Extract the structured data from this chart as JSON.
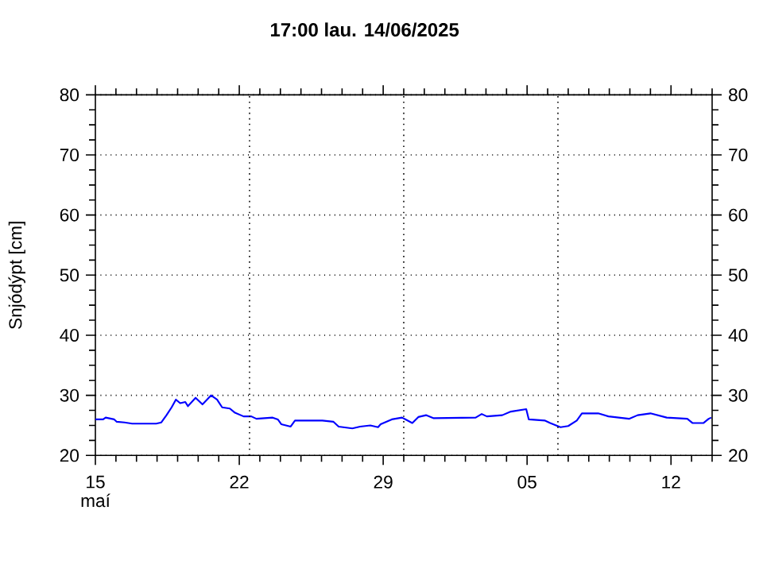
{
  "chart_data": {
    "type": "line",
    "title": "17:00   lau.  14/06/2025",
    "ylabel": "Snjódýpt [cm]",
    "annotations": [
      "maí"
    ],
    "xlim": [
      "2025-05-15T00:00",
      "2025-06-14T00:00"
    ],
    "xticks": [
      {
        "value": "2025-05-15",
        "label": "15"
      },
      {
        "value": "2025-05-16",
        "label": null
      },
      {
        "value": "2025-05-17",
        "label": null
      },
      {
        "value": "2025-05-18",
        "label": null
      },
      {
        "value": "2025-05-19",
        "label": null
      },
      {
        "value": "2025-05-20",
        "label": null
      },
      {
        "value": "2025-05-21",
        "label": null
      },
      {
        "value": "2025-05-22",
        "label": "22"
      },
      {
        "value": "2025-05-23",
        "label": null
      },
      {
        "value": "2025-05-24",
        "label": null
      },
      {
        "value": "2025-05-25",
        "label": null
      },
      {
        "value": "2025-05-26",
        "label": null
      },
      {
        "value": "2025-05-27",
        "label": null
      },
      {
        "value": "2025-05-28",
        "label": null
      },
      {
        "value": "2025-05-29",
        "label": "29"
      },
      {
        "value": "2025-05-30",
        "label": null
      },
      {
        "value": "2025-05-31",
        "label": null
      },
      {
        "value": "2025-06-01",
        "label": null
      },
      {
        "value": "2025-06-02",
        "label": null
      },
      {
        "value": "2025-06-03",
        "label": null
      },
      {
        "value": "2025-06-04",
        "label": null
      },
      {
        "value": "2025-06-05",
        "label": "05"
      },
      {
        "value": "2025-06-06",
        "label": null
      },
      {
        "value": "2025-06-07",
        "label": null
      },
      {
        "value": "2025-06-08",
        "label": null
      },
      {
        "value": "2025-06-09",
        "label": null
      },
      {
        "value": "2025-06-10",
        "label": null
      },
      {
        "value": "2025-06-11",
        "label": null
      },
      {
        "value": "2025-06-12",
        "label": "12"
      },
      {
        "value": "2025-06-13",
        "label": null
      },
      {
        "value": "2025-06-14",
        "label": null
      }
    ],
    "ylim": [
      20,
      80
    ],
    "yticks": [
      20,
      30,
      40,
      50,
      60,
      70,
      80
    ],
    "y2lim": [
      20,
      80
    ],
    "y2ticks": [
      20,
      30,
      40,
      50,
      60,
      70,
      80
    ],
    "grid": "y",
    "ref_lines": [
      {
        "axis": "x",
        "value": "2025-05-22T12:00",
        "color": "#000000",
        "line_style": "dotted"
      },
      {
        "axis": "x",
        "value": "2025-05-30T00:00",
        "color": "#000000",
        "line_style": "dotted"
      },
      {
        "axis": "x",
        "value": "2025-06-06T12:00",
        "color": "#000000",
        "line_style": "dotted"
      }
    ],
    "series": [
      {
        "color": "#0000ff",
        "x": [
          "2025-05-15T00:00",
          "2025-05-15T09:00",
          "2025-05-15T12:00",
          "2025-05-15T22:00",
          "2025-05-16T01:00",
          "2025-05-16T10:00",
          "2025-05-16T19:00",
          "2025-05-17T23:00",
          "2025-05-18T05:00",
          "2025-05-18T11:00",
          "2025-05-18T17:00",
          "2025-05-18T22:00",
          "2025-05-19T03:00",
          "2025-05-19T09:00",
          "2025-05-19T12:00",
          "2025-05-19T21:00",
          "2025-05-20T05:00",
          "2025-05-20T15:00",
          "2025-05-20T22:00",
          "2025-05-21T04:00",
          "2025-05-21T13:00",
          "2025-05-21T19:00",
          "2025-05-22T05:00",
          "2025-05-22T14:00",
          "2025-05-22T20:00",
          "2025-05-23T15:00",
          "2025-05-23T21:00",
          "2025-05-24T01:00",
          "2025-05-24T12:00",
          "2025-05-24T17:00",
          "2025-05-26T01:00",
          "2025-05-26T14:00",
          "2025-05-26T20:00",
          "2025-05-27T12:00",
          "2025-05-27T21:00",
          "2025-05-28T09:00",
          "2025-05-28T18:00",
          "2025-05-28T21:00",
          "2025-05-29T10:00",
          "2025-05-29T22:00",
          "2025-05-30T10:00",
          "2025-05-30T17:00",
          "2025-05-31T02:00",
          "2025-05-31T11:00",
          "2025-06-02T12:00",
          "2025-06-02T19:00",
          "2025-06-03T01:00",
          "2025-06-03T19:00",
          "2025-06-04T05:00",
          "2025-06-04T23:00",
          "2025-06-05T02:00",
          "2025-06-05T21:00",
          "2025-06-06T03:00",
          "2025-06-06T15:00",
          "2025-06-07T00:00",
          "2025-06-07T10:00",
          "2025-06-07T16:00",
          "2025-06-08T11:00",
          "2025-06-08T23:00",
          "2025-06-09T23:00",
          "2025-06-10T09:00",
          "2025-06-11T00:00",
          "2025-06-11T19:00",
          "2025-06-12T19:00",
          "2025-06-13T01:00",
          "2025-06-13T14:00",
          "2025-06-13T20:00",
          "2025-06-13T23:00"
        ],
        "values": [
          26.0,
          26.0,
          26.3,
          26.0,
          25.6,
          25.5,
          25.3,
          25.3,
          25.5,
          26.7,
          28.0,
          29.3,
          28.7,
          28.9,
          28.2,
          29.6,
          28.5,
          30.0,
          29.3,
          28.0,
          27.8,
          27.1,
          26.5,
          26.5,
          26.1,
          26.3,
          26.0,
          25.2,
          24.8,
          25.8,
          25.8,
          25.6,
          24.8,
          24.5,
          24.8,
          25.0,
          24.7,
          25.2,
          26.0,
          26.3,
          25.4,
          26.4,
          26.7,
          26.2,
          26.3,
          26.9,
          26.5,
          26.7,
          27.3,
          27.7,
          26.0,
          25.8,
          25.4,
          24.7,
          24.9,
          25.8,
          27.0,
          27.0,
          26.5,
          26.1,
          26.7,
          27.0,
          26.3,
          26.1,
          25.4,
          25.4,
          26.1,
          26.3
        ]
      }
    ]
  }
}
